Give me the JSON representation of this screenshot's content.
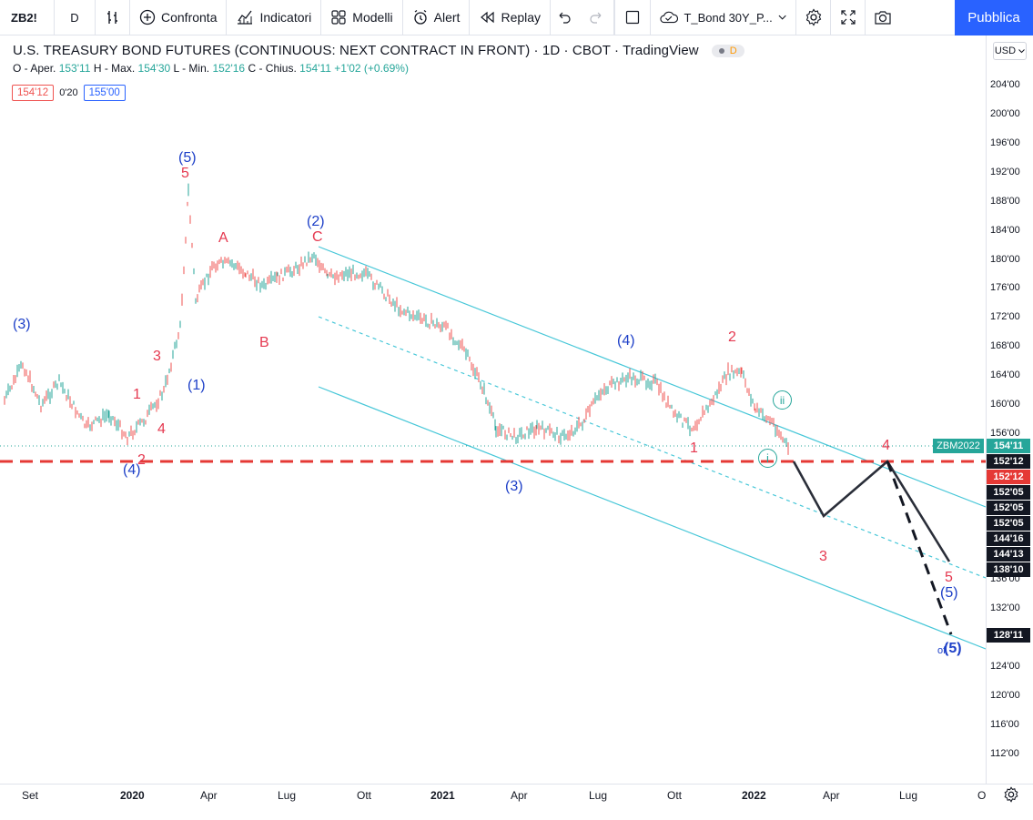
{
  "toolbar": {
    "symbol": "ZB2!",
    "interval": "D",
    "compare_label": "Confronta",
    "indicators_label": "Indicatori",
    "templates_label": "Modelli",
    "alert_label": "Alert",
    "replay_label": "Replay",
    "layout_name": "T_Bond 30Y_P...",
    "publish_label": "Pubblica"
  },
  "legend": {
    "title": "U.S. TREASURY BOND FUTURES (CONTINUOUS: NEXT CONTRACT IN FRONT) · 1D · CBOT · TradingView",
    "badge": "D",
    "open_label": "O - Aper.",
    "open_value": "153'11",
    "high_label": "H - Max.",
    "high_value": "154'30",
    "low_label": "L - Min.",
    "low_value": "152'16",
    "close_label": "C - Chius.",
    "close_value": "154'11",
    "change_value": "+1'02 (+0.69%)"
  },
  "trade": {
    "sell_price": "154'12",
    "spread": "0'20",
    "buy_price": "155'00"
  },
  "currency": "USD",
  "price_axis": [
    "204'00",
    "200'00",
    "196'00",
    "192'00",
    "188'00",
    "184'00",
    "180'00",
    "176'00",
    "172'00",
    "168'00",
    "164'00",
    "160'00",
    "156'00",
    "136'00",
    "132'00",
    "124'00",
    "120'00",
    "116'00",
    "112'00"
  ],
  "price_tags": {
    "contract_label": "ZBM2022",
    "last_price": "154'11",
    "t1": "152'12",
    "t2": "152'12",
    "t3": "152'05",
    "t4": "152'05",
    "t5": "152'05",
    "t6": "144'16",
    "t7": "144'13",
    "t8": "138'10",
    "t9": "128'11"
  },
  "time_axis": {
    "sep": "Set",
    "y2020": "2020",
    "apr1": "Apr",
    "lug1": "Lug",
    "ott1": "Ott",
    "y2021": "2021",
    "apr2": "Apr",
    "lug2": "Lug",
    "ott2": "Ott",
    "y2022": "2022",
    "apr3": "Apr",
    "lug3": "Lug",
    "ott3": "O"
  },
  "waves": {
    "b3": "(3)",
    "b4a": "(4)",
    "b5": "(5)",
    "b1": "(1)",
    "b2": "(2)",
    "b3b": "(3)",
    "b4b": "(4)",
    "b5b": "(5)",
    "b5c": "(5)",
    "of": "of",
    "r1": "1",
    "r2": "2",
    "r3": "3",
    "r4": "4",
    "r5": "5",
    "rA": "A",
    "rB": "B",
    "rC": "C",
    "r2b": "2",
    "r1b": "1",
    "r3b": "3",
    "r4b": "4",
    "r5b": "5",
    "gi": "i",
    "gii": "ii"
  },
  "colors": {
    "up": "#26a69a",
    "down": "#ef5350",
    "wave_red": "#e53950",
    "wave_blue": "#1e40c8",
    "channel": "#47c7d8",
    "support": "#e53935",
    "accent": "#2962ff"
  }
}
